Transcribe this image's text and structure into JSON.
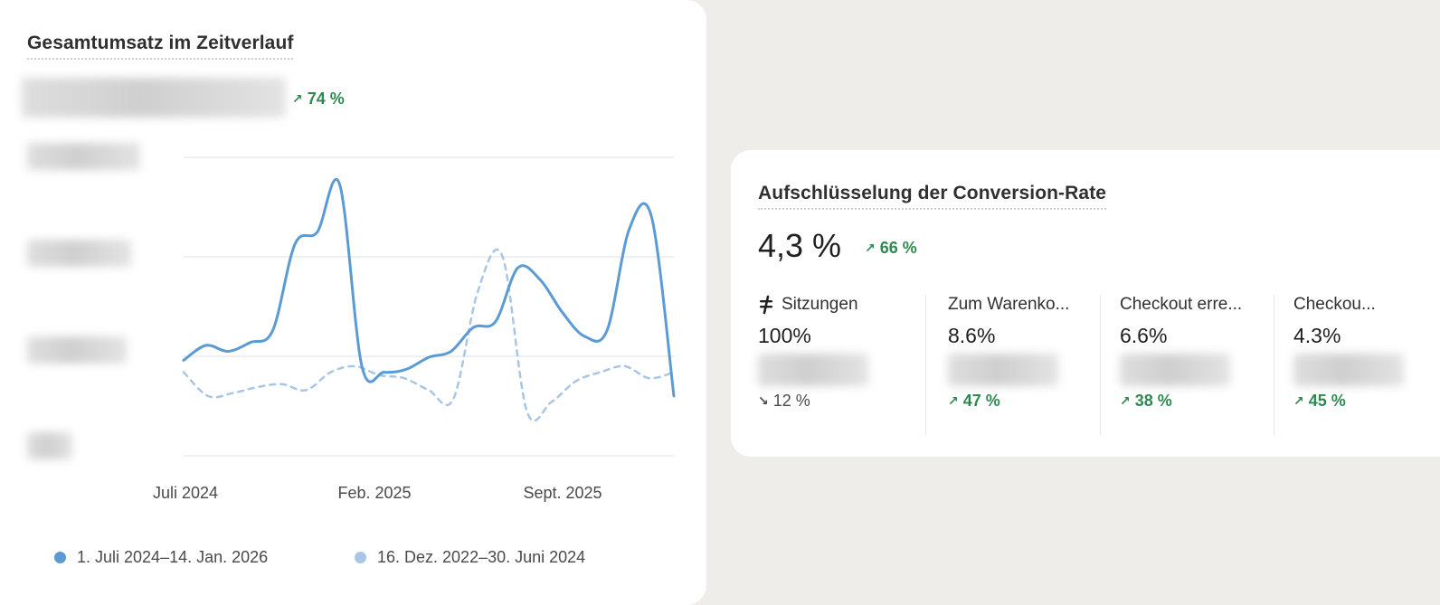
{
  "sales_card": {
    "title": "Gesamtumsatz im Zeitverlauf",
    "delta": "74 %",
    "delta_direction": "up",
    "legend": [
      {
        "label": "1. Juli 2024–14. Jan. 2026",
        "color": "#5b9bd5"
      },
      {
        "label": "16. Dez. 2022–30. Juni 2024",
        "color": "#a9c6e6"
      }
    ]
  },
  "chart_data": {
    "type": "line",
    "title": "Gesamtumsatz im Zeitverlauf",
    "x_tick_labels": [
      "Juli 2024",
      "Feb. 2025",
      "Sept. 2025"
    ],
    "y_tick_labels_visible": false,
    "grid": "horizontal",
    "legend_position": "bottom",
    "series": [
      {
        "name": "1. Juli 2024–14. Jan. 2026",
        "style": "solid",
        "color": "#5b9bd5",
        "values": [
          0.32,
          0.37,
          0.35,
          0.38,
          0.42,
          0.71,
          0.75,
          0.91,
          0.3,
          0.28,
          0.29,
          0.33,
          0.35,
          0.43,
          0.45,
          0.63,
          0.59,
          0.48,
          0.4,
          0.42,
          0.76,
          0.8,
          0.2
        ]
      },
      {
        "name": "16. Dez. 2022–30. Juni 2024",
        "style": "dashed",
        "color": "#a9c6e6",
        "values": [
          0.28,
          0.2,
          0.21,
          0.23,
          0.24,
          0.22,
          0.28,
          0.3,
          0.27,
          0.26,
          0.22,
          0.19,
          0.55,
          0.67,
          0.15,
          0.18,
          0.25,
          0.28,
          0.3,
          0.26,
          0.28
        ]
      }
    ]
  },
  "conversion_card": {
    "title": "Aufschlüsselung der Conversion-Rate",
    "rate": "4,3 %",
    "delta": "66 %",
    "delta_direction": "up",
    "steps": [
      {
        "label": "Sitzungen",
        "value": "100%",
        "delta": "12 %",
        "direction": "down",
        "icon": "sessions-icon"
      },
      {
        "label": "Zum Warenko...",
        "value": "8.6%",
        "delta": "47 %",
        "direction": "up"
      },
      {
        "label": "Checkout erre...",
        "value": "6.6%",
        "delta": "38 %",
        "direction": "up"
      },
      {
        "label": "Checkou...",
        "value": "4.3%",
        "delta": "45 %",
        "direction": "up"
      }
    ]
  },
  "colors": {
    "positive": "#2d8a4e",
    "series_current": "#5b9bd5",
    "series_previous": "#a9c6e6",
    "page_background": "#efede9"
  }
}
